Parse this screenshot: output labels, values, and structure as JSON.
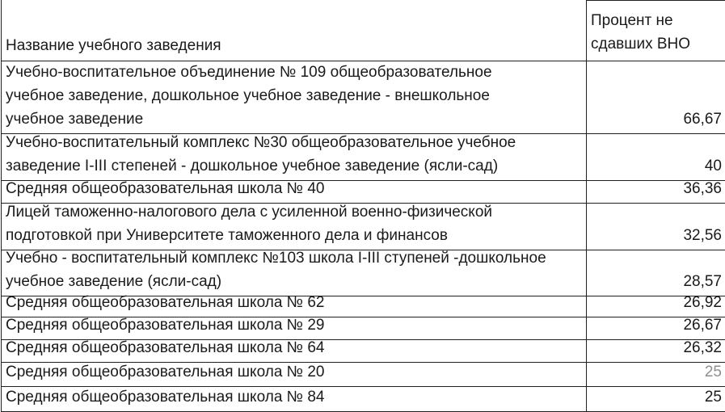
{
  "table": {
    "header": {
      "name_label": "Название учебного заведения",
      "value_label": "Процент не\nсдавших ВНО"
    },
    "rows": [
      {
        "name": "Учебно-воспитательное объединение № 109 общеобразовательное\nучебное заведение, дошкольное учебное заведение - внешкольное\nучебное заведение",
        "value": "66,67"
      },
      {
        "name": "Учебно-воспитательный комплекс №30 общеобразовательное учебное\nзаведение I-III степеней - дошкольное учебное заведение (ясли-сад)",
        "value": "40"
      },
      {
        "name": "Средняя общеобразовательная школа № 40",
        "value": "36,36"
      },
      {
        "name": "Лицей таможенно-налогового дела с усиленной военно-физической\nподготовкой при Университете таможенного дела и финансов",
        "value": "32,56"
      },
      {
        "name": "Учебно - воспитательный комплекс №103 школа I-III ступеней -дошкольное\nучебное заведение (ясли-сад)",
        "value": "28,57"
      },
      {
        "name": "Средняя общеобразовательная школа № 62",
        "value": "26,92"
      },
      {
        "name": "Средняя общеобразовательная школа № 29",
        "value": "26,67"
      },
      {
        "name": "Средняя общеобразовательная школа № 64",
        "value": "26,32"
      },
      {
        "name": "Средняя общеобразовательная школа № 20",
        "value": "25",
        "value_muted": true
      },
      {
        "name": "Средняя общеобразовательная школа № 84",
        "value": "25"
      }
    ],
    "colors": {
      "text": "#1a1a1a",
      "muted_value": "#8e8e8e",
      "border": "#1f1f1f",
      "background": "#ffffff"
    }
  }
}
